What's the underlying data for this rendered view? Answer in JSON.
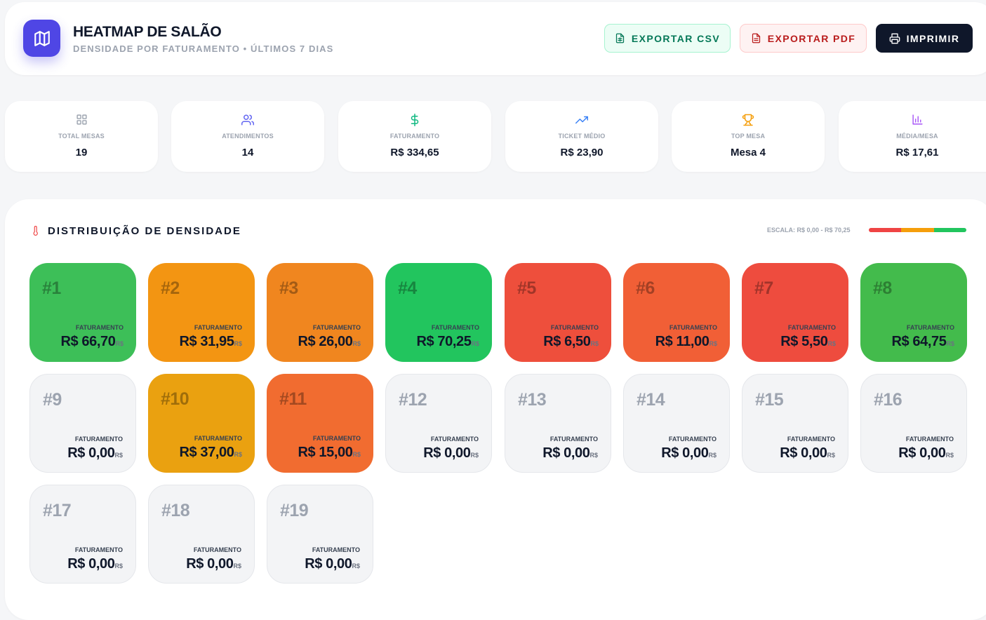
{
  "header": {
    "title": "HEATMAP DE SALÃO",
    "subtitle": "DENSIDADE POR FATURAMENTO • ÚLTIMOS 7 DIAS",
    "buttons": {
      "csv": "EXPORTAR CSV",
      "pdf": "EXPORTAR PDF",
      "print": "IMPRIMIR"
    }
  },
  "stats": [
    {
      "label": "TOTAL MESAS",
      "value": "19",
      "icon": "grid-icon",
      "color": "#9ca3af"
    },
    {
      "label": "ATENDIMENTOS",
      "value": "14",
      "icon": "users-icon",
      "color": "#6366f1"
    },
    {
      "label": "FATURAMENTO",
      "value": "R$ 334,65",
      "icon": "dollar-icon",
      "color": "#10b981"
    },
    {
      "label": "TICKET MÉDIO",
      "value": "R$ 23,90",
      "icon": "trending-up-icon",
      "color": "#3b82f6"
    },
    {
      "label": "TOP MESA",
      "value": "Mesa 4",
      "icon": "trophy-icon",
      "color": "#f59e0b"
    },
    {
      "label": "MÉDIA/MESA",
      "value": "R$ 17,61",
      "icon": "bar-chart-icon",
      "color": "#a855f7"
    }
  ],
  "panel": {
    "title": "DISTRIBUIÇÃO DE DENSIDADE",
    "scale_label": "ESCALA: R$ 0,00 - R$ 70,25",
    "scale_colors": [
      "#ef4444",
      "#f59e0b",
      "#22c55e"
    ],
    "card_label": "FATURAMENTO",
    "currency_suffix": "R$"
  },
  "tables": [
    {
      "number": "#1",
      "value": "R$ 66,70",
      "color": "#3dbf58"
    },
    {
      "number": "#2",
      "value": "R$ 31,95",
      "color": "#f39512"
    },
    {
      "number": "#3",
      "value": "R$ 26,00",
      "color": "#f0861f"
    },
    {
      "number": "#4",
      "value": "R$ 70,25",
      "color": "#22c55e"
    },
    {
      "number": "#5",
      "value": "R$ 6,50",
      "color": "#ee4f3c"
    },
    {
      "number": "#6",
      "value": "R$ 11,00",
      "color": "#f15f36"
    },
    {
      "number": "#7",
      "value": "R$ 5,50",
      "color": "#ee4c3e"
    },
    {
      "number": "#8",
      "value": "R$ 64,75",
      "color": "#43bb4c"
    },
    {
      "number": "#9",
      "value": "R$ 0,00",
      "color": ""
    },
    {
      "number": "#10",
      "value": "R$ 37,00",
      "color": "#eaa110"
    },
    {
      "number": "#11",
      "value": "R$ 15,00",
      "color": "#f16c30"
    },
    {
      "number": "#12",
      "value": "R$ 0,00",
      "color": ""
    },
    {
      "number": "#13",
      "value": "R$ 0,00",
      "color": ""
    },
    {
      "number": "#14",
      "value": "R$ 0,00",
      "color": ""
    },
    {
      "number": "#15",
      "value": "R$ 0,00",
      "color": ""
    },
    {
      "number": "#16",
      "value": "R$ 0,00",
      "color": ""
    },
    {
      "number": "#17",
      "value": "R$ 0,00",
      "color": ""
    },
    {
      "number": "#18",
      "value": "R$ 0,00",
      "color": ""
    },
    {
      "number": "#19",
      "value": "R$ 0,00",
      "color": ""
    }
  ]
}
